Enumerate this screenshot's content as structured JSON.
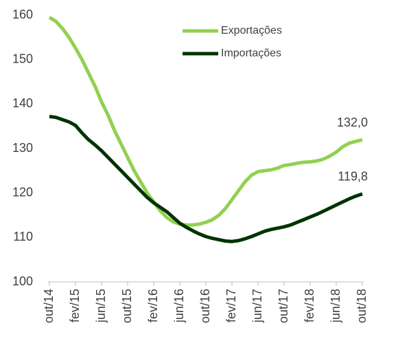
{
  "chart_data": {
    "type": "line",
    "categories": [
      "out/14",
      null,
      null,
      null,
      "fev/15",
      null,
      null,
      null,
      "jun/15",
      null,
      null,
      null,
      "out/15",
      null,
      null,
      null,
      "fev/16",
      null,
      null,
      null,
      "jun/16",
      null,
      null,
      null,
      "out/16",
      null,
      null,
      null,
      "fev/17",
      null,
      null,
      null,
      "jun/17",
      null,
      null,
      null,
      "out/17",
      null,
      null,
      null,
      "fev/18",
      null,
      null,
      null,
      "jun/18",
      null,
      null,
      null,
      "out/18"
    ],
    "series": [
      {
        "name": "Exportações",
        "color": "#92d050",
        "values": [
          159.5,
          158.6,
          157,
          155,
          152.6,
          150,
          147,
          144,
          140.5,
          137.5,
          134,
          131,
          128,
          125,
          122.5,
          120,
          118,
          116,
          114.5,
          113.5,
          113,
          112.8,
          112.8,
          113,
          113.4,
          114,
          115,
          116.5,
          118.5,
          120.5,
          122.5,
          124,
          124.8,
          125,
          125.2,
          125.6,
          126.2,
          126.4,
          126.7,
          126.9,
          127,
          127.2,
          127.6,
          128.3,
          129.2,
          130.4,
          131.2,
          131.6,
          132.0
        ],
        "value_labels": [
          null,
          null,
          null,
          null,
          null,
          null,
          null,
          null,
          null,
          null,
          null,
          null,
          null,
          null,
          null,
          null,
          null,
          null,
          null,
          null,
          null,
          null,
          null,
          null,
          null,
          null,
          null,
          null,
          null,
          null,
          null,
          null,
          null,
          null,
          null,
          null,
          null,
          null,
          null,
          null,
          null,
          null,
          null,
          null,
          null,
          null,
          null,
          null,
          "132,0"
        ]
      },
      {
        "name": "Importações",
        "color": "#003300",
        "values": [
          137.2,
          137,
          136.5,
          136,
          135.2,
          133.5,
          132,
          130.8,
          129.5,
          128,
          126.5,
          125,
          123.5,
          122,
          120.5,
          119,
          117.8,
          116.8,
          115.8,
          114.5,
          113.2,
          112.3,
          111.5,
          110.8,
          110.2,
          109.8,
          109.5,
          109.2,
          109.1,
          109.3,
          109.7,
          110.2,
          110.8,
          111.4,
          111.8,
          112.1,
          112.4,
          112.8,
          113.4,
          114,
          114.6,
          115.2,
          115.9,
          116.6,
          117.3,
          118,
          118.7,
          119.3,
          119.8
        ],
        "value_labels": [
          null,
          null,
          null,
          null,
          null,
          null,
          null,
          null,
          null,
          null,
          null,
          null,
          null,
          null,
          null,
          null,
          null,
          null,
          null,
          null,
          null,
          null,
          null,
          null,
          null,
          null,
          null,
          null,
          null,
          null,
          null,
          null,
          null,
          null,
          null,
          null,
          null,
          null,
          null,
          null,
          null,
          null,
          null,
          null,
          null,
          null,
          null,
          null,
          "119,8"
        ]
      }
    ],
    "ylim": [
      100,
      160
    ],
    "yticks": [
      100,
      110,
      120,
      130,
      140,
      150,
      160
    ],
    "grid": false,
    "legend": "top"
  }
}
